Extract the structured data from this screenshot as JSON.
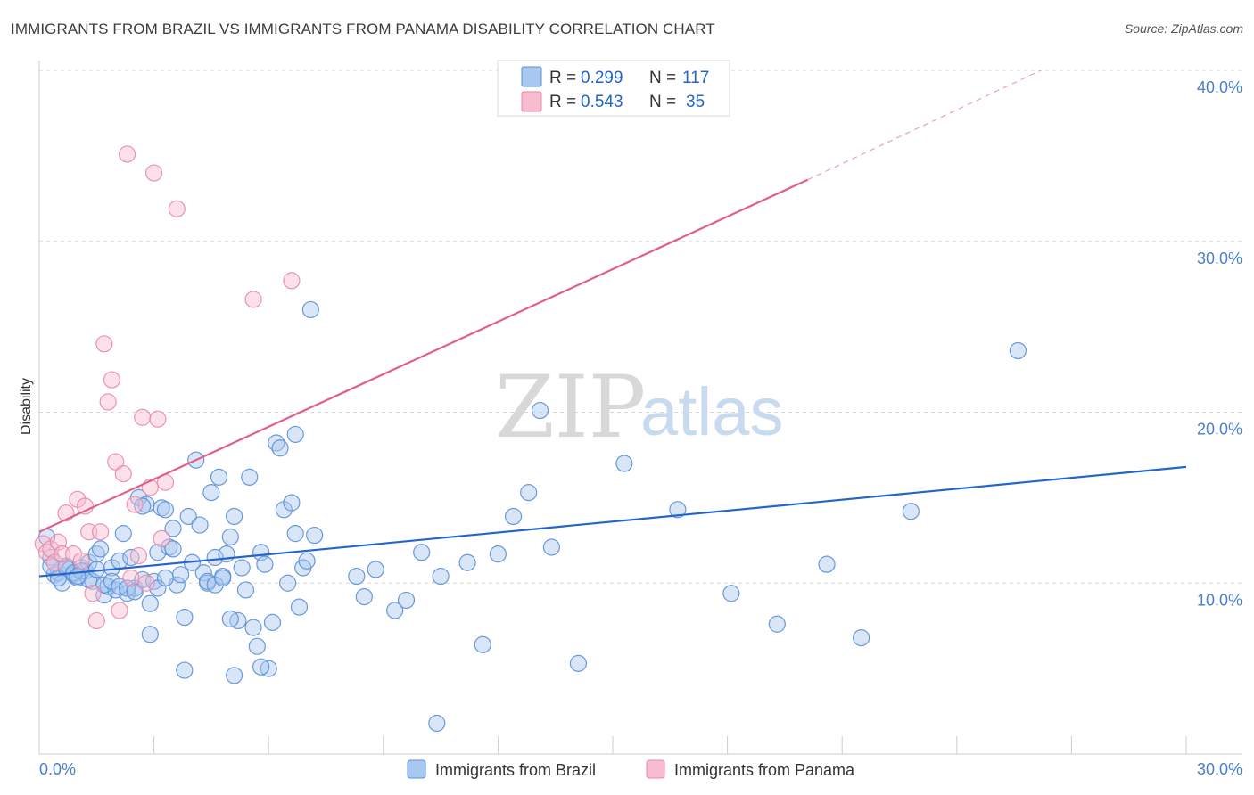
{
  "title": "IMMIGRANTS FROM BRAZIL VS IMMIGRANTS FROM PANAMA DISABILITY CORRELATION CHART",
  "source": "Source: ZipAtlas.com",
  "watermark": {
    "zip": "ZIP",
    "atlas": "atlas"
  },
  "legend": {
    "brazil": {
      "r_label": "R =",
      "r_value": "0.299",
      "n_label": "N =",
      "n_value": "117"
    },
    "panama": {
      "r_label": "R =",
      "r_value": "0.543",
      "n_label": "N =",
      "n_value": "35"
    }
  },
  "bottom_legend": {
    "brazil": "Immigrants from Brazil",
    "panama": "Immigrants from Panama"
  },
  "colors": {
    "brazil_fill": "#a8c8f0",
    "brazil_stroke": "#5b8fd6",
    "brazil_line": "#2266cc",
    "panama_fill": "#f8bcd0",
    "panama_stroke": "#e889a8",
    "panama_line": "#e0608a",
    "tick": "#4a7fd0",
    "grid": "#d8d8d8"
  },
  "chart_data": {
    "type": "scatter",
    "title": "IMMIGRANTS FROM BRAZIL VS IMMIGRANTS FROM PANAMA DISABILITY CORRELATION CHART",
    "xlabel": "",
    "ylabel": "Disability",
    "xlim": [
      0,
      30
    ],
    "ylim": [
      0,
      40
    ],
    "x_tick_labels": [
      "0.0%",
      "30.0%"
    ],
    "y_ticks": [
      10,
      20,
      30,
      40
    ],
    "y_tick_labels": [
      "10.0%",
      "20.0%",
      "30.0%",
      "40.0%"
    ],
    "grid": true,
    "series": [
      {
        "name": "Immigrants from Brazil",
        "R": 0.299,
        "N": 117,
        "trend": {
          "x0": 0,
          "y0": 10.4,
          "x1": 30,
          "y1": 16.8
        },
        "points": [
          [
            0.2,
            12.7
          ],
          [
            0.3,
            11.5
          ],
          [
            0.4,
            10.5
          ],
          [
            0.5,
            10.6
          ],
          [
            0.6,
            10.0
          ],
          [
            0.7,
            11.0
          ],
          [
            0.8,
            10.8
          ],
          [
            0.9,
            10.5
          ],
          [
            1.0,
            10.3
          ],
          [
            1.1,
            10.9
          ],
          [
            1.2,
            10.7
          ],
          [
            1.3,
            11.2
          ],
          [
            1.4,
            10.1
          ],
          [
            1.5,
            11.7
          ],
          [
            1.6,
            12.0
          ],
          [
            1.7,
            9.3
          ],
          [
            1.8,
            9.8
          ],
          [
            1.9,
            10.9
          ],
          [
            2.0,
            9.6
          ],
          [
            2.1,
            11.3
          ],
          [
            2.2,
            12.9
          ],
          [
            2.3,
            9.4
          ],
          [
            2.4,
            11.5
          ],
          [
            2.5,
            9.7
          ],
          [
            2.6,
            15.0
          ],
          [
            2.7,
            10.2
          ],
          [
            2.8,
            14.6
          ],
          [
            2.9,
            8.8
          ],
          [
            3.0,
            10.1
          ],
          [
            3.1,
            11.8
          ],
          [
            3.2,
            14.4
          ],
          [
            3.3,
            14.3
          ],
          [
            3.4,
            12.1
          ],
          [
            3.5,
            13.2
          ],
          [
            3.6,
            9.9
          ],
          [
            3.7,
            10.5
          ],
          [
            3.8,
            8.0
          ],
          [
            3.9,
            13.9
          ],
          [
            4.0,
            11.2
          ],
          [
            4.1,
            17.2
          ],
          [
            4.2,
            13.4
          ],
          [
            4.3,
            10.6
          ],
          [
            4.4,
            10.0
          ],
          [
            4.5,
            15.3
          ],
          [
            4.6,
            11.5
          ],
          [
            4.7,
            16.2
          ],
          [
            4.8,
            10.4
          ],
          [
            4.9,
            11.7
          ],
          [
            5.0,
            12.7
          ],
          [
            5.1,
            13.9
          ],
          [
            5.2,
            7.8
          ],
          [
            5.3,
            10.9
          ],
          [
            5.4,
            9.6
          ],
          [
            5.5,
            16.2
          ],
          [
            5.6,
            7.4
          ],
          [
            5.7,
            6.3
          ],
          [
            5.8,
            11.8
          ],
          [
            5.9,
            11.1
          ],
          [
            6.0,
            5.0
          ],
          [
            6.1,
            7.7
          ],
          [
            6.2,
            18.2
          ],
          [
            6.3,
            17.9
          ],
          [
            6.4,
            14.3
          ],
          [
            6.5,
            10.0
          ],
          [
            6.6,
            14.7
          ],
          [
            6.7,
            18.7
          ],
          [
            6.8,
            8.6
          ],
          [
            6.9,
            10.9
          ],
          [
            7.0,
            11.3
          ],
          [
            7.1,
            26.0
          ],
          [
            0.3,
            11.0
          ],
          [
            0.5,
            10.3
          ],
          [
            0.7,
            10.9
          ],
          [
            0.9,
            10.6
          ],
          [
            1.1,
            10.7
          ],
          [
            1.3,
            10.2
          ],
          [
            1.5,
            10.8
          ],
          [
            1.7,
            9.9
          ],
          [
            1.9,
            10.1
          ],
          [
            2.1,
            9.8
          ],
          [
            2.3,
            9.7
          ],
          [
            2.5,
            9.5
          ],
          [
            2.7,
            14.5
          ],
          [
            2.9,
            7.0
          ],
          [
            3.1,
            9.7
          ],
          [
            3.3,
            10.3
          ],
          [
            3.5,
            12.0
          ],
          [
            3.8,
            4.9
          ],
          [
            4.4,
            10.1
          ],
          [
            4.6,
            9.9
          ],
          [
            5.0,
            7.9
          ],
          [
            5.1,
            4.6
          ],
          [
            5.8,
            5.1
          ],
          [
            6.7,
            12.9
          ],
          [
            7.2,
            12.8
          ],
          [
            8.3,
            10.4
          ],
          [
            8.5,
            9.2
          ],
          [
            8.8,
            10.8
          ],
          [
            9.3,
            8.4
          ],
          [
            9.6,
            9.0
          ],
          [
            10.0,
            11.8
          ],
          [
            10.4,
            1.8
          ],
          [
            10.5,
            10.4
          ],
          [
            11.2,
            11.2
          ],
          [
            11.6,
            6.4
          ],
          [
            12.0,
            11.7
          ],
          [
            12.4,
            13.9
          ],
          [
            12.8,
            15.3
          ],
          [
            13.1,
            20.1
          ],
          [
            13.4,
            12.1
          ],
          [
            15.3,
            17.0
          ],
          [
            16.7,
            14.3
          ],
          [
            18.1,
            9.4
          ],
          [
            19.3,
            7.6
          ],
          [
            20.6,
            11.1
          ],
          [
            21.5,
            6.8
          ],
          [
            22.8,
            14.2
          ],
          [
            25.6,
            23.6
          ],
          [
            1.0,
            10.4
          ],
          [
            4.8,
            10.3
          ],
          [
            14.1,
            5.3
          ]
        ]
      },
      {
        "name": "Immigrants from Panama",
        "R": 0.543,
        "N": 35,
        "trend": {
          "x0": 0,
          "y0": 13.0,
          "x1": 20.1,
          "y1": 33.6
        },
        "trend_dashed": {
          "x0": 20.1,
          "y0": 33.6,
          "x1": 26.2,
          "y1": 40.0
        },
        "points": [
          [
            0.1,
            12.3
          ],
          [
            0.2,
            11.8
          ],
          [
            0.3,
            12.0
          ],
          [
            0.4,
            11.2
          ],
          [
            0.5,
            12.4
          ],
          [
            0.6,
            11.7
          ],
          [
            0.7,
            14.1
          ],
          [
            0.9,
            11.7
          ],
          [
            1.0,
            14.9
          ],
          [
            1.1,
            11.3
          ],
          [
            1.2,
            14.5
          ],
          [
            1.3,
            13.0
          ],
          [
            1.4,
            9.4
          ],
          [
            1.5,
            7.8
          ],
          [
            1.6,
            13.0
          ],
          [
            1.7,
            24.0
          ],
          [
            1.8,
            20.6
          ],
          [
            1.9,
            21.9
          ],
          [
            2.0,
            17.1
          ],
          [
            2.1,
            8.4
          ],
          [
            2.2,
            16.4
          ],
          [
            2.3,
            35.1
          ],
          [
            2.4,
            10.3
          ],
          [
            2.5,
            14.6
          ],
          [
            2.6,
            11.6
          ],
          [
            2.7,
            19.7
          ],
          [
            2.8,
            10.0
          ],
          [
            2.9,
            15.6
          ],
          [
            3.0,
            34.0
          ],
          [
            3.1,
            19.6
          ],
          [
            3.2,
            12.6
          ],
          [
            3.3,
            15.9
          ],
          [
            3.6,
            31.9
          ],
          [
            5.6,
            26.6
          ],
          [
            6.6,
            27.7
          ]
        ]
      }
    ]
  }
}
